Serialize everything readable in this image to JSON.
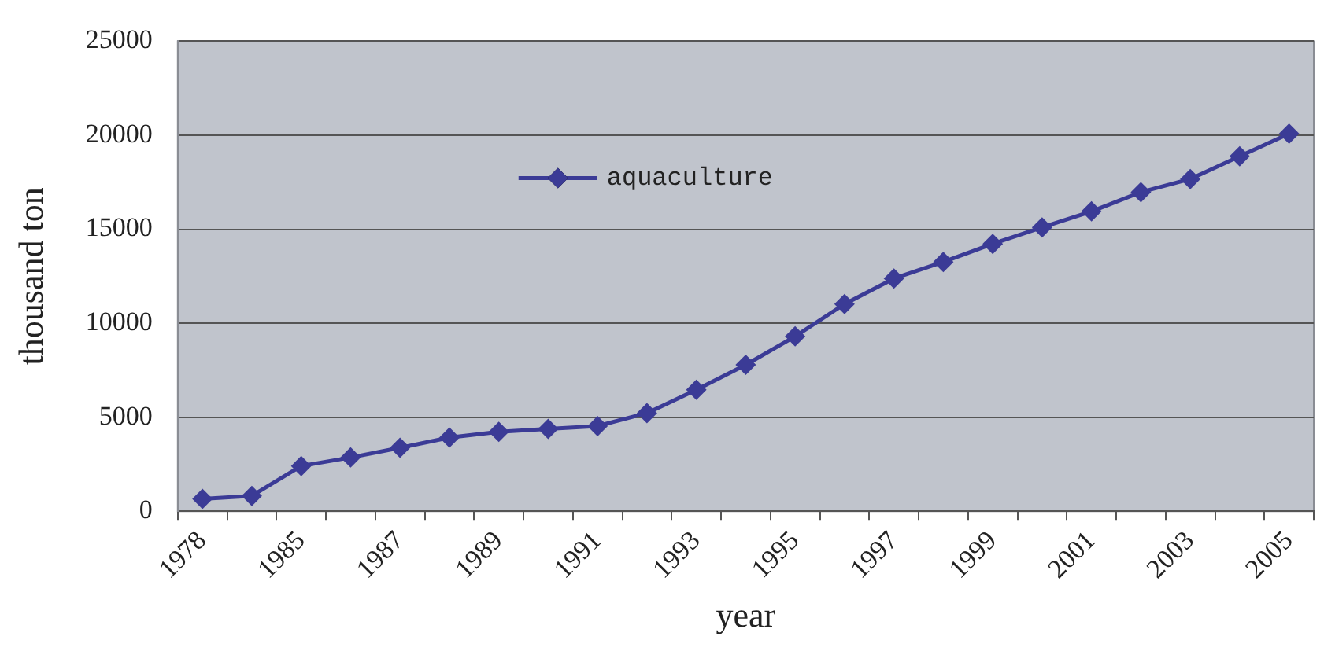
{
  "chart_data": {
    "type": "line",
    "xlabel": "year",
    "ylabel": "thousand ton",
    "categories": [
      "1978",
      null,
      "1985",
      null,
      "1987",
      null,
      "1989",
      null,
      "1991",
      null,
      "1993",
      null,
      "1995",
      null,
      "1997",
      null,
      "1999",
      null,
      "2001",
      null,
      "2003",
      null,
      "2005"
    ],
    "series": [
      {
        "name": "aquaculture",
        "color": "#3b3b96",
        "values": [
          660,
          820,
          2410,
          2860,
          3380,
          3920,
          4220,
          4380,
          4530,
          5220,
          6460,
          7790,
          9300,
          11020,
          12380,
          13260,
          14220,
          15100,
          15950,
          16970,
          17670,
          18880,
          20080
        ]
      }
    ],
    "ylim": [
      0,
      25000
    ],
    "yticks": [
      0,
      5000,
      10000,
      15000,
      20000,
      25000
    ],
    "grid": "y",
    "legend": "top",
    "marker": "diamond",
    "line_style": "solid"
  }
}
